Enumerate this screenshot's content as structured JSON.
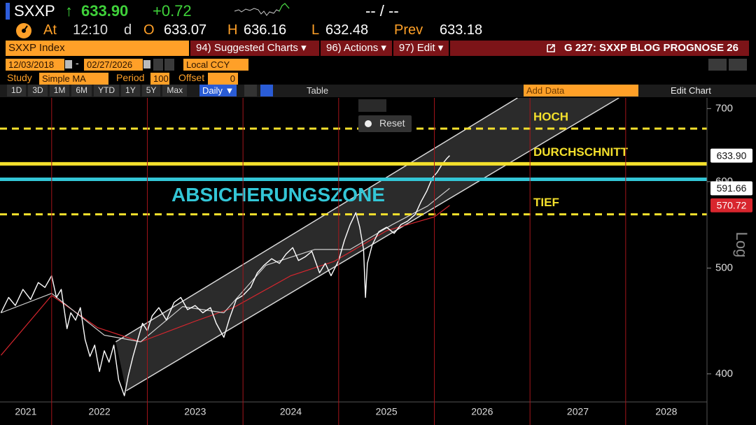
{
  "header": {
    "ticker": "SXXP",
    "arrow": "↑",
    "last": "633.90",
    "change": "+0.72",
    "bid_ask": "-- / --",
    "at": "At",
    "time": "12:10",
    "d": "d",
    "open_label": "O",
    "open": "633.07",
    "high_label": "H",
    "high": "636.16",
    "low_label": "L",
    "low": "632.48",
    "prev_label": "Prev",
    "prev": "633.18"
  },
  "menu": {
    "security": "SXXP Index",
    "items": [
      "94) Suggested Charts ▾",
      "96) Actions ▾",
      "97) Edit ▾"
    ],
    "page": "G 227: SXXP BLOG PROGNOSE 26"
  },
  "range": {
    "start": "12/03/2018",
    "end": "02/27/2026",
    "currency": "Local CCY"
  },
  "study": {
    "label": "Study",
    "study": "Simple MA",
    "period_label": "Period",
    "period": "100",
    "offset_label": "Offset",
    "offset": "0"
  },
  "toolbar": {
    "periods": [
      "1D",
      "3D",
      "1M",
      "6M",
      "YTD",
      "1Y",
      "5Y",
      "Max"
    ],
    "frequency": "Daily ▼",
    "table": "Table",
    "add_data": "Add Data",
    "edit_chart": "Edit Chart"
  },
  "popup": {
    "reset": "Reset"
  },
  "chart_data": {
    "type": "line",
    "log": true,
    "scale_label": "Log",
    "xlim": [
      2021.46,
      2028.85
    ],
    "xticks": [
      2021,
      2022,
      2023,
      2024,
      2025,
      2026,
      2027,
      2028
    ],
    "ylim": [
      377,
      716
    ],
    "yticks": [
      400,
      500,
      600,
      700
    ],
    "series": [
      {
        "color": "#ffffff",
        "x": [
          2021.47,
          2021.55,
          2021.62,
          2021.7,
          2021.78,
          2021.86,
          2021.93,
          2022.0,
          2022.05,
          2022.1,
          2022.16,
          2022.2,
          2022.25,
          2022.3,
          2022.35,
          2022.4,
          2022.45,
          2022.5,
          2022.55,
          2022.6,
          2022.65,
          2022.7,
          2022.76,
          2022.8,
          2022.85,
          2022.9,
          2022.95,
          2023.0,
          2023.05,
          2023.12,
          2023.2,
          2023.28,
          2023.35,
          2023.42,
          2023.5,
          2023.58,
          2023.66,
          2023.72,
          2023.8,
          2023.86,
          2023.93,
          2024.0,
          2024.08,
          2024.15,
          2024.22,
          2024.3,
          2024.38,
          2024.45,
          2024.52,
          2024.58,
          2024.65,
          2024.72,
          2024.8,
          2024.86,
          2024.92,
          2025.0,
          2025.06,
          2025.12,
          2025.18,
          2025.22,
          2025.26,
          2025.28,
          2025.3,
          2025.35,
          2025.42,
          2025.5,
          2025.58,
          2025.65,
          2025.72,
          2025.8,
          2025.86,
          2025.92,
          2025.98,
          2026.03,
          2026.08,
          2026.13,
          2026.16
        ],
        "values": [
          455,
          470,
          462,
          478,
          468,
          485,
          480,
          492,
          470,
          478,
          440,
          455,
          448,
          460,
          430,
          415,
          425,
          402,
          420,
          410,
          425,
          395,
          382,
          398,
          415,
          430,
          445,
          438,
          452,
          460,
          448,
          465,
          470,
          458,
          462,
          455,
          460,
          445,
          432,
          450,
          468,
          472,
          480,
          495,
          503,
          510,
          505,
          515,
          522,
          508,
          512,
          518,
          495,
          505,
          492,
          508,
          530,
          548,
          562,
          545,
          520,
          470,
          505,
          525,
          540,
          545,
          538,
          548,
          552,
          560,
          575,
          588,
          605,
          612,
          622,
          630,
          633.9
        ]
      },
      {
        "color": "#cfcfcf",
        "x": [
          2021.47,
          2022.0,
          2022.55,
          2022.93,
          2023.37,
          2023.8,
          2024.24,
          2024.75,
          2025.12,
          2025.56,
          2025.93,
          2026.16
        ],
        "values": [
          455,
          474,
          434,
          428,
          461,
          455,
          503,
          520,
          520,
          548,
          570,
          591.66
        ]
      },
      {
        "color": "#d8262e",
        "x": [
          2021.47,
          2022.0,
          2022.48,
          2022.93,
          2023.5,
          2023.9,
          2024.5,
          2024.95,
          2025.5,
          2026.0,
          2026.16
        ],
        "values": [
          416,
          472,
          441,
          428,
          447,
          460,
          492,
          507,
          541,
          557,
          570.72
        ]
      }
    ],
    "channel": [
      {
        "x": [
          2022.67,
          2026.87
        ],
        "values": [
          428,
          716
        ]
      },
      {
        "x": [
          2022.78,
          2027.93
        ],
        "values": [
          386,
          716
        ]
      }
    ],
    "levels": [
      {
        "label": "HOCH",
        "value": 671,
        "color": "#f4e02c",
        "dashed": true
      },
      {
        "label": "DURCHSCHNITT",
        "value": 623,
        "color": "#f4e02c",
        "dashed": false
      },
      {
        "value": 603,
        "color": "#33c6d6",
        "dashed": false
      },
      {
        "label": "TIEF",
        "value": 560,
        "color": "#f4e02c",
        "dashed": true
      }
    ],
    "annotation": "ABSICHERUNGSZONE",
    "annotation_color": "#33c6d6",
    "price_tags": [
      {
        "value": 633.9,
        "label": "633.90",
        "color": "#ffffff",
        "text_color": "#111111"
      },
      {
        "value": 591.66,
        "label": "591.66",
        "color": "#ffffff",
        "text_color": "#111111"
      },
      {
        "value": 570.72,
        "label": "570.72",
        "color": "#d8262e",
        "text_color": "#ffffff"
      }
    ]
  }
}
